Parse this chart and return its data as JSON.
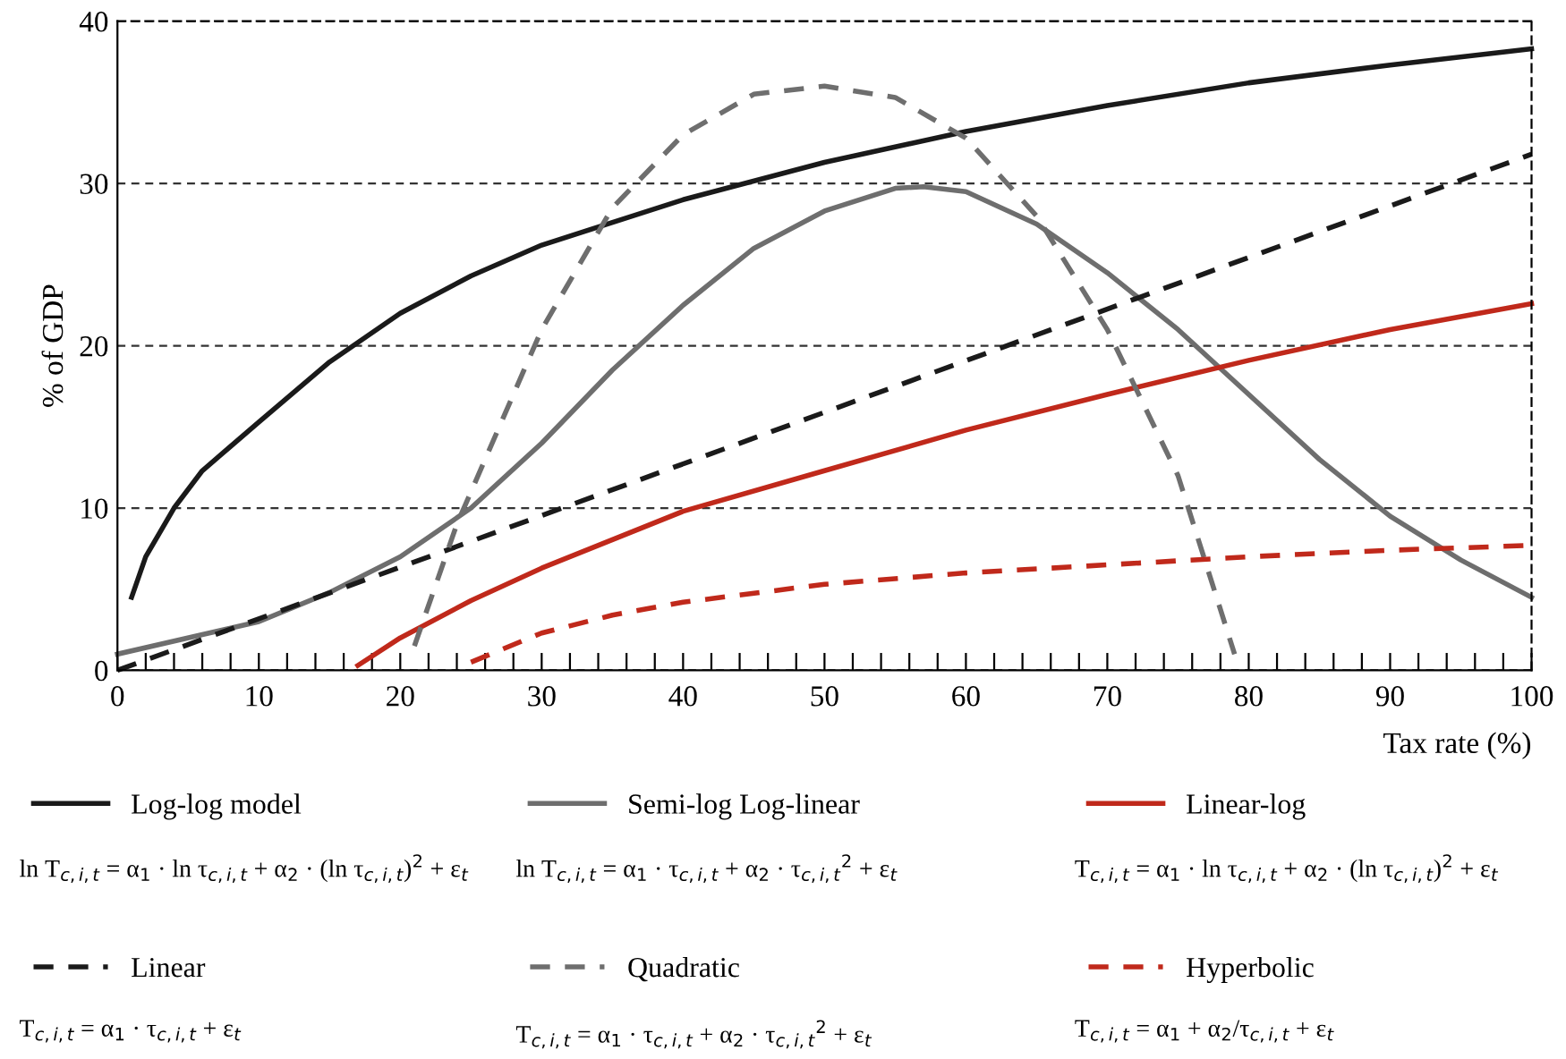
{
  "chart_data": {
    "type": "line",
    "xlabel": "Tax rate (%)",
    "ylabel": "% of GDP",
    "xlim": [
      0,
      100
    ],
    "ylim": [
      0,
      40
    ],
    "xticks": [
      0,
      {
        "value": 2,
        "label": null
      },
      {
        "value": 4,
        "label": null
      },
      {
        "value": 6,
        "label": null
      },
      {
        "value": 8,
        "label": null
      },
      10,
      {
        "value": 12,
        "label": null
      },
      {
        "value": 14,
        "label": null
      },
      {
        "value": 16,
        "label": null
      },
      {
        "value": 18,
        "label": null
      },
      20,
      {
        "value": 22,
        "label": null
      },
      {
        "value": 24,
        "label": null
      },
      {
        "value": 26,
        "label": null
      },
      {
        "value": 28,
        "label": null
      },
      30,
      {
        "value": 32,
        "label": null
      },
      {
        "value": 34,
        "label": null
      },
      {
        "value": 36,
        "label": null
      },
      {
        "value": 38,
        "label": null
      },
      40,
      {
        "value": 42,
        "label": null
      },
      {
        "value": 44,
        "label": null
      },
      {
        "value": 46,
        "label": null
      },
      {
        "value": 48,
        "label": null
      },
      50,
      {
        "value": 52,
        "label": null
      },
      {
        "value": 54,
        "label": null
      },
      {
        "value": 56,
        "label": null
      },
      {
        "value": 58,
        "label": null
      },
      60,
      {
        "value": 62,
        "label": null
      },
      {
        "value": 64,
        "label": null
      },
      {
        "value": 66,
        "label": null
      },
      {
        "value": 68,
        "label": null
      },
      70,
      {
        "value": 72,
        "label": null
      },
      {
        "value": 74,
        "label": null
      },
      {
        "value": 76,
        "label": null
      },
      {
        "value": 78,
        "label": null
      },
      80,
      {
        "value": 82,
        "label": null
      },
      {
        "value": 84,
        "label": null
      },
      {
        "value": 86,
        "label": null
      },
      {
        "value": 88,
        "label": null
      },
      90,
      {
        "value": 92,
        "label": null
      },
      {
        "value": 94,
        "label": null
      },
      {
        "value": 96,
        "label": null
      },
      {
        "value": 98,
        "label": null
      },
      100
    ],
    "yticks": [
      0,
      10,
      20,
      30,
      40
    ],
    "grid": "y",
    "legend": "bottom",
    "marker": "none",
    "series": [
      {
        "name": "Log-log model",
        "color": "#1a1a1a",
        "line_style": "solid",
        "x": [
          1,
          2,
          4,
          6,
          10,
          15,
          20,
          25,
          30,
          40,
          50,
          60,
          70,
          80,
          90,
          100
        ],
        "values": [
          4.5,
          7,
          10,
          12.3,
          15.3,
          19,
          22,
          24.3,
          26.2,
          29,
          31.3,
          33.2,
          34.8,
          36.2,
          37.3,
          38.3
        ]
      },
      {
        "name": "Semi-log Log-linear",
        "color": "#6e6e6e",
        "line_style": "solid",
        "x": [
          0,
          10,
          15,
          20,
          25,
          30,
          35,
          40,
          45,
          50,
          55,
          57,
          60,
          65,
          70,
          75,
          80,
          85,
          90,
          95,
          100
        ],
        "values": [
          1,
          3,
          4.8,
          7,
          10,
          14,
          18.5,
          22.5,
          26,
          28.3,
          29.7,
          29.8,
          29.5,
          27.5,
          24.5,
          21,
          17,
          13,
          9.5,
          6.8,
          4.5
        ]
      },
      {
        "name": "Linear-log",
        "color": "#c0291b",
        "line_style": "solid",
        "x": [
          17,
          20,
          25,
          30,
          40,
          50,
          60,
          70,
          80,
          90,
          100
        ],
        "values": [
          0.3,
          2,
          4.3,
          6.3,
          9.8,
          12.3,
          14.8,
          17,
          19.1,
          21,
          22.6
        ]
      },
      {
        "name": "Linear",
        "color": "#1a1a1a",
        "line_style": "dashed",
        "x": [
          0,
          100
        ],
        "values": [
          0,
          31.8
        ]
      },
      {
        "name": "Quadratic",
        "color": "#6e6e6e",
        "line_style": "dashed",
        "x": [
          21,
          24,
          30,
          35,
          40,
          45,
          50,
          55,
          60,
          65,
          70,
          75,
          79
        ],
        "values": [
          1.5,
          9,
          21,
          28.5,
          33,
          35.5,
          36,
          35.3,
          32.8,
          28,
          21,
          12,
          1
        ]
      },
      {
        "name": "Hyperbolic",
        "color": "#c0291b",
        "line_style": "dashed",
        "x": [
          25,
          30,
          35,
          40,
          50,
          60,
          70,
          80,
          90,
          100
        ],
        "values": [
          0.5,
          2.3,
          3.4,
          4.2,
          5.3,
          6,
          6.5,
          7,
          7.4,
          7.7
        ]
      }
    ],
    "annotations": [
      "ln T$_{c,i,t}$ = α$_{1}$ · ln τ$_{c,i,t}$ + α$_{2}$ · (ln τ$_{c,i,t}$)$^{2}$ + ε$_{t}$",
      "ln T$_{c,i,t}$ = α$_{1}$ · τ$_{c,i,t}$ + α$_{2}$ · τ$_{c,i,t}$$^{2}$ + ε$_{t}$",
      "T$_{c,i,t}$ = α$_{1}$ · ln τ$_{c,i,t}$ + α$_{2}$ · (ln τ$_{c,i,t}$)$^{2}$ + ε$_{t}$",
      "T$_{c,i,t}$ = α$_{1}$ · τ$_{c,i,t}$ + ε$_{t}$",
      "T$_{c,i,t}$ = α$_{1}$ · τ$_{c,i,t}$ + α$_{2}$ · τ$_{c,i,t}$$^{2}$ + ε$_{t}$",
      "T$_{c,i,t}$ = α$_{1}$ + α$_{2}$/τ$_{c,i,t}$ + ε$_{t}$"
    ]
  }
}
